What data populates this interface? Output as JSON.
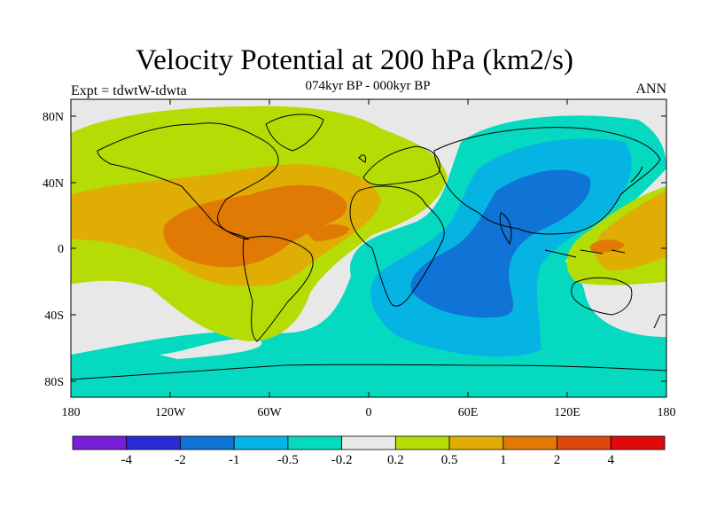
{
  "title": "Velocity Potential at 200 hPa (km2/s)",
  "subtitle": "074kyr BP - 000kyr BP",
  "left_label": "Expt = tdwtW-tdwta",
  "right_label": "ANN",
  "lat_ticks": [
    "80N",
    "40N",
    "0",
    "40S",
    "80S"
  ],
  "lon_ticks": [
    "180",
    "120W",
    "60W",
    "0",
    "60E",
    "120E",
    "180"
  ],
  "colorbar": {
    "labels": [
      "-4",
      "-2",
      "-1",
      "-0.5",
      "-0.2",
      "0.2",
      "0.5",
      "1",
      "2",
      "4"
    ],
    "colors": [
      "#7a1ed8",
      "#2b2bd6",
      "#0f74d6",
      "#06b4e4",
      "#05dac0",
      "#e8e8e8",
      "#b6dc06",
      "#e0ad05",
      "#e07a05",
      "#e0470a",
      "#e00a0a"
    ]
  },
  "colors": {
    "ocean_neutral": "#e8e8e8",
    "coastline": "#000000"
  }
}
